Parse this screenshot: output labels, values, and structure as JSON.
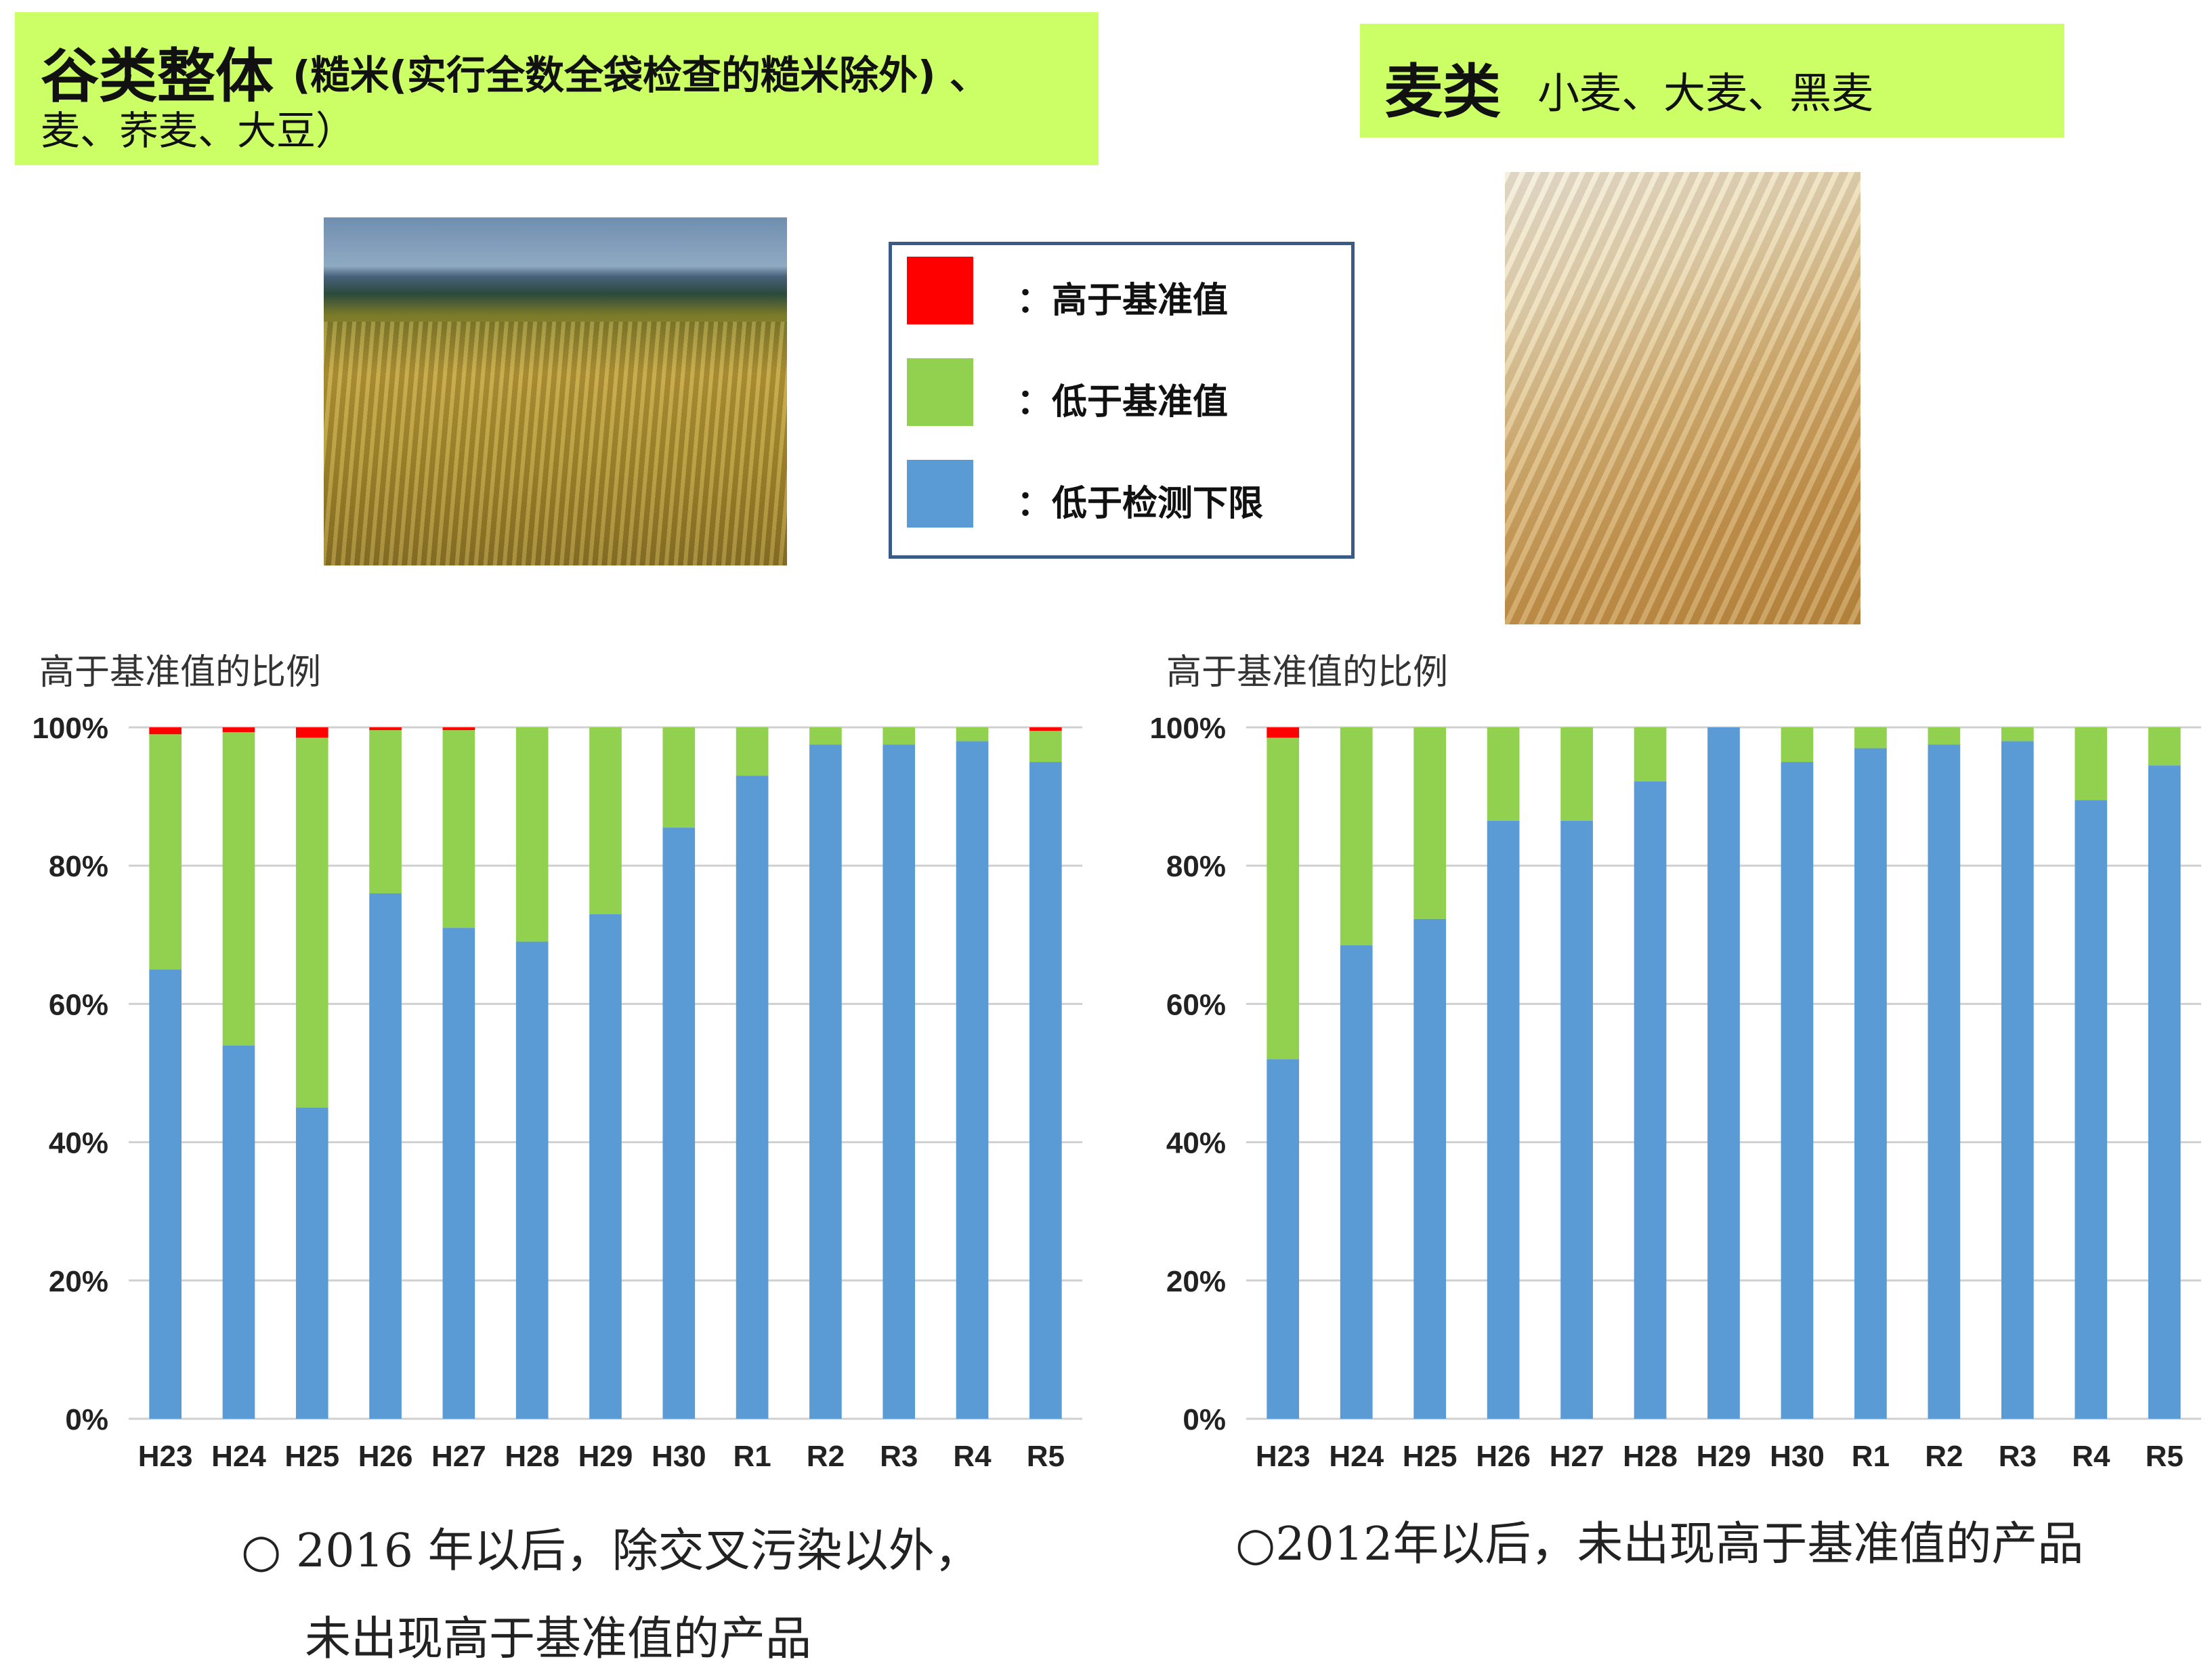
{
  "left_header": {
    "title_big": "谷类整体",
    "title_rest": "(糙米(实行全数全袋检查的糙米除外) 、",
    "title_line2": "麦、荞麦、大豆）"
  },
  "right_header": {
    "title_big": "麦类",
    "title_rest": "小麦、大麦、黑麦"
  },
  "legend": {
    "items": [
      {
        "label": "：高于基准值",
        "color": "#ff0000"
      },
      {
        "label": "：低于基准值",
        "color": "#92d050"
      },
      {
        "label": "：低于检测下限",
        "color": "#5b9bd5"
      }
    ]
  },
  "colors": {
    "above": "#ff0000",
    "below": "#92d050",
    "nd": "#5b9bd5",
    "grid": "#d0d0d0",
    "header_bg": "#ccff66",
    "legend_border": "#3b5a86"
  },
  "left_chart": {
    "caption": "高于基准值的比例"
  },
  "right_chart": {
    "caption": "高于基准值的比例"
  },
  "notes": {
    "left_line1": "○ 2016 年以后，除交叉污染以外，",
    "left_line2": "未出现高于基准值的产品",
    "right_line1": "○2012年以后，未出现高于基准值的产品"
  },
  "chart_data": [
    {
      "type": "bar",
      "stacked": true,
      "categories": [
        "H23",
        "H24",
        "H25",
        "H26",
        "H27",
        "H28",
        "H29",
        "H30",
        "R1",
        "R2",
        "R3",
        "R4",
        "R5"
      ],
      "y_ticks": [
        "0%",
        "20%",
        "40%",
        "60%",
        "80%",
        "100%"
      ],
      "ylim": [
        0,
        100
      ],
      "grid": true,
      "series": [
        {
          "name": "低于检测下限",
          "color": "#5b9bd5",
          "values": [
            65,
            54,
            45,
            76,
            71,
            69,
            73,
            85.5,
            93,
            97.5,
            97.5,
            98,
            95
          ]
        },
        {
          "name": "低于基准值",
          "color": "#92d050",
          "values": [
            34,
            45.3,
            53.5,
            23.6,
            28.6,
            31,
            27,
            14.5,
            7,
            2.5,
            2.5,
            2,
            4.5
          ]
        },
        {
          "name": "高于基准值",
          "color": "#ff0000",
          "values": [
            1,
            0.7,
            1.5,
            0.4,
            0.4,
            0,
            0,
            0,
            0,
            0,
            0,
            0,
            0.5
          ]
        }
      ]
    },
    {
      "type": "bar",
      "stacked": true,
      "categories": [
        "H23",
        "H24",
        "H25",
        "H26",
        "H27",
        "H28",
        "H29",
        "H30",
        "R1",
        "R2",
        "R3",
        "R4",
        "R5"
      ],
      "y_ticks": [
        "0%",
        "20%",
        "40%",
        "60%",
        "80%",
        "100%"
      ],
      "ylim": [
        0,
        100
      ],
      "grid": true,
      "series": [
        {
          "name": "低于检测下限",
          "color": "#5b9bd5",
          "values": [
            52,
            68.5,
            72.3,
            86.5,
            86.5,
            92.2,
            100,
            95,
            97,
            97.5,
            98,
            89.5,
            94.5
          ]
        },
        {
          "name": "低于基准值",
          "color": "#92d050",
          "values": [
            46.5,
            31.5,
            27.7,
            13.5,
            13.5,
            7.8,
            0,
            5,
            3,
            2.5,
            2,
            10.5,
            5.5
          ]
        },
        {
          "name": "高于基准值",
          "color": "#ff0000",
          "values": [
            1.5,
            0,
            0,
            0,
            0,
            0,
            0,
            0,
            0,
            0,
            0,
            0,
            0
          ]
        }
      ]
    }
  ]
}
